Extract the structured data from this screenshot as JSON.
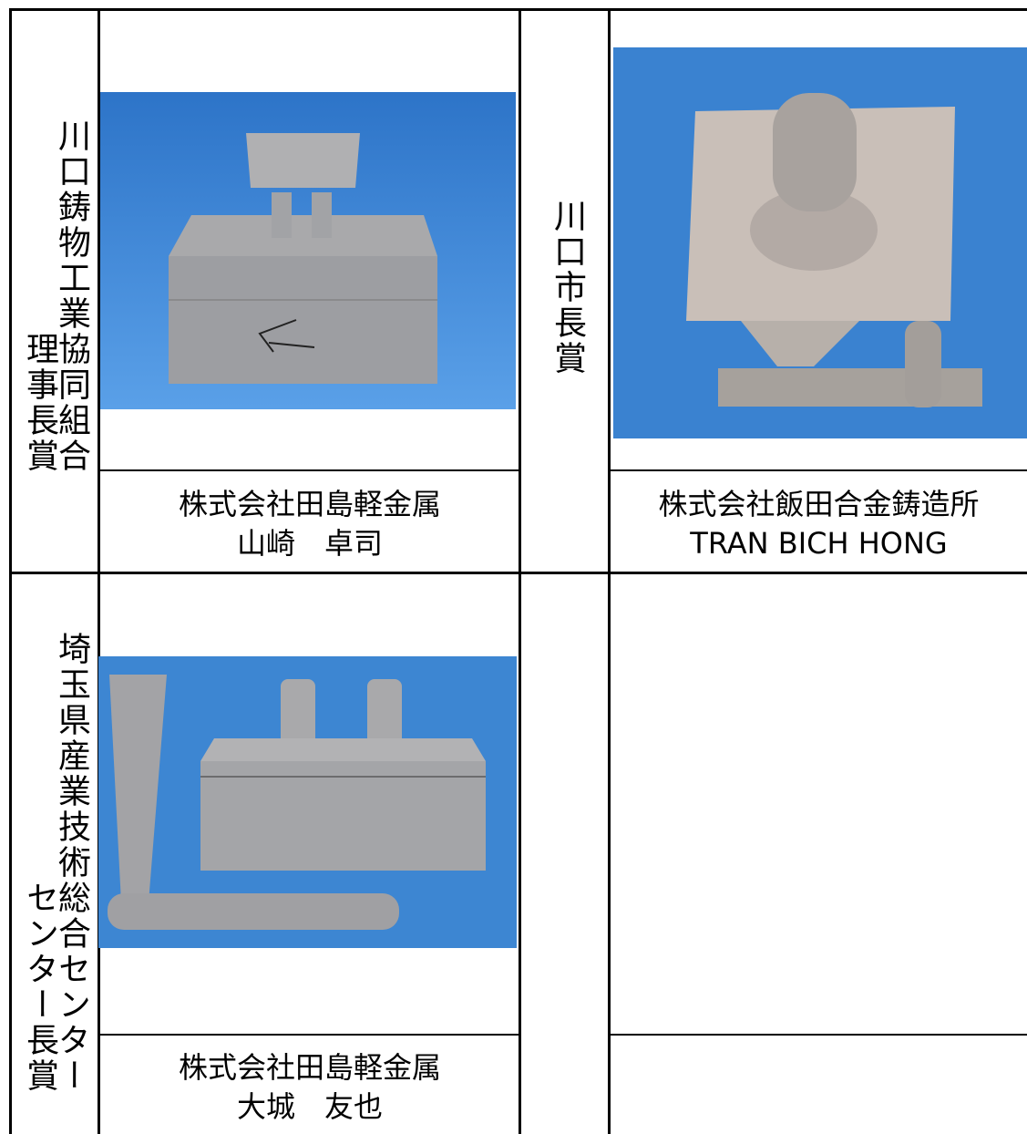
{
  "rows": [
    {
      "award": [
        "川口鋳物工業協同組合",
        "理事長賞"
      ],
      "entry": {
        "company": "株式会社田島軽金属",
        "name": "山崎　卓司"
      }
    },
    {
      "award": [
        "埼玉県産業技術総合センター",
        "センター長賞"
      ],
      "entry": {
        "company": "株式会社田島軽金属",
        "name": "大城　友也"
      }
    }
  ],
  "middle_award": "川口市長賞",
  "right_entry": {
    "company": "株式会社飯田合金鋳造所",
    "name": "TRAN BICH HONG"
  }
}
